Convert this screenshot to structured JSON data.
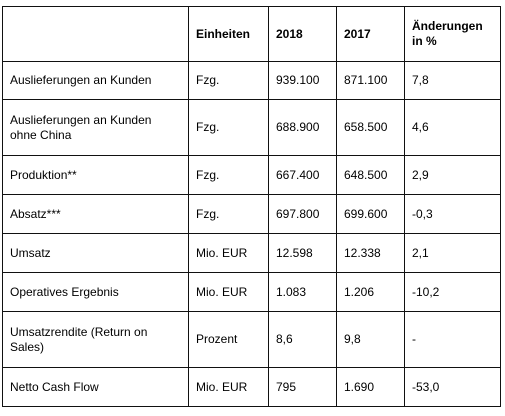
{
  "table": {
    "headers": [
      "",
      "Einheiten",
      "2018",
      "2017",
      "Änderungen in %"
    ],
    "rows": [
      {
        "label": "Auslieferungen an Kunden",
        "unit": "Fzg.",
        "y2018": "939.100",
        "y2017": "871.100",
        "change": "7,8"
      },
      {
        "label": "Auslieferungen an Kunden ohne China",
        "unit": "Fzg.",
        "y2018": "688.900",
        "y2017": "658.500",
        "change": "4,6"
      },
      {
        "label": "Produktion**",
        "unit": "Fzg.",
        "y2018": "667.400",
        "y2017": "648.500",
        "change": "2,9"
      },
      {
        "label": "Absatz***",
        "unit": "Fzg.",
        "y2018": "697.800",
        "y2017": "699.600",
        "change": "-0,3"
      },
      {
        "label": "Umsatz",
        "unit": "Mio. EUR",
        "y2018": "12.598",
        "y2017": "12.338",
        "change": "2,1"
      },
      {
        "label": "Operatives Ergebnis",
        "unit": "Mio. EUR",
        "y2018": "1.083",
        "y2017": "1.206",
        "change": "-10,2"
      },
      {
        "label": "Umsatzrendite (Return on Sales)",
        "unit": "Prozent",
        "y2018": "8,6",
        "y2017": "9,8",
        "change": "-"
      },
      {
        "label": "Netto Cash Flow",
        "unit": "Mio. EUR",
        "y2018": "795",
        "y2017": "1.690",
        "change": "-53,0"
      }
    ]
  }
}
